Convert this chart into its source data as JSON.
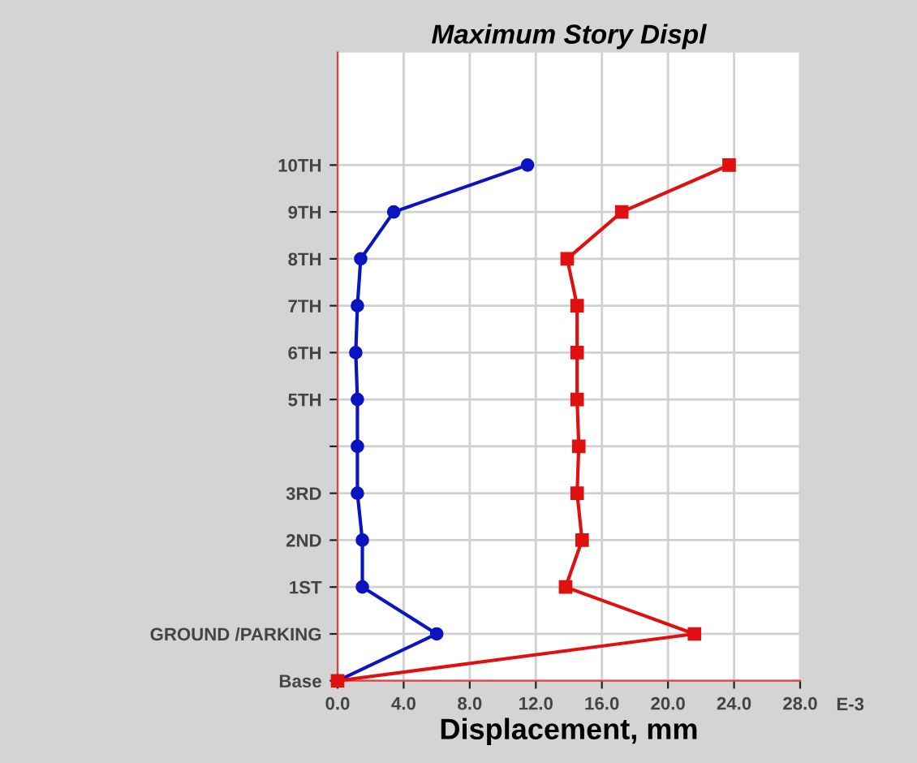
{
  "chart_data": {
    "type": "line",
    "orientation": "horizontal",
    "title": "Maximum Story Displ",
    "xlabel": "Displacement, mm",
    "categories": [
      "10TH",
      "9TH",
      "8TH",
      "7TH",
      "6TH",
      "5TH",
      null,
      "3RD",
      "2ND",
      "1ST",
      "GROUND /PARKING",
      "Base"
    ],
    "series": [
      {
        "color": "#0a14c0",
        "marker": "circle",
        "values": [
          11.5,
          3.4,
          1.4,
          1.2,
          1.1,
          1.2,
          1.2,
          1.2,
          1.5,
          1.5,
          6.0,
          0
        ]
      },
      {
        "color": "#e01010",
        "marker": "square",
        "values": [
          23.7,
          17.2,
          13.9,
          14.5,
          14.5,
          14.5,
          14.6,
          14.5,
          14.8,
          13.8,
          21.6,
          0
        ]
      }
    ],
    "xlim": [
      0,
      28
    ],
    "xticks": [
      {
        "value": 0,
        "label": "0.0"
      },
      {
        "value": 4,
        "label": "4.0"
      },
      {
        "value": 8,
        "label": "8.0"
      },
      {
        "value": 12,
        "label": "12.0"
      },
      {
        "value": 16,
        "label": "16.0"
      },
      {
        "value": 20,
        "label": "20.0"
      },
      {
        "value": 24,
        "label": "24.0"
      },
      {
        "value": 28,
        "label": "28.0"
      }
    ],
    "annotations": [
      "E-3"
    ],
    "grid": true,
    "legend": false
  }
}
